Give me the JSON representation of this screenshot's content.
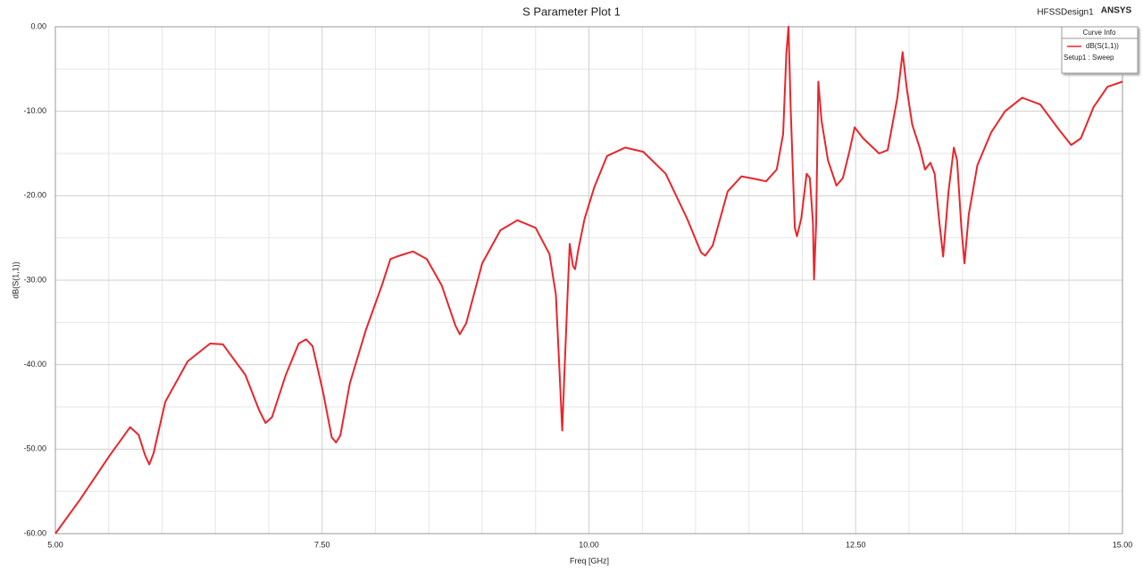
{
  "chart_data": {
    "type": "line",
    "title": "S Parameter Plot 1",
    "design": "HFSSDesign1",
    "brand": "ANSYS",
    "legend_title": "Curve Info",
    "legend_note": "Setup1 : Sweep",
    "xlabel": "Freq [GHz]",
    "ylabel": "dB(S(1,1))",
    "grid": true,
    "xlim": [
      5,
      15
    ],
    "ylim": [
      -60,
      0
    ],
    "xticks": [
      {
        "value": 5,
        "label": "5.00"
      },
      {
        "value": 7.5,
        "label": "7.50"
      },
      {
        "value": 10,
        "label": "10.00"
      },
      {
        "value": 12.5,
        "label": "12.50"
      },
      {
        "value": 15,
        "label": "15.00"
      }
    ],
    "yticks": [
      {
        "value": 0,
        "label": "0.00"
      },
      {
        "value": -10,
        "label": "-10.00"
      },
      {
        "value": -20,
        "label": "-20.00"
      },
      {
        "value": -30,
        "label": "-30.00"
      },
      {
        "value": -40,
        "label": "-40.00"
      },
      {
        "value": -50,
        "label": "-50.00"
      },
      {
        "value": -60,
        "label": "-60.00"
      }
    ],
    "xticks_minor": [
      5.5,
      6,
      6.5,
      7,
      8,
      8.5,
      9,
      9.5,
      10.5,
      11,
      11.5,
      12,
      13,
      13.5,
      14,
      14.5
    ],
    "yticks_minor": [
      -5,
      -15,
      -25,
      -35,
      -45,
      -55
    ],
    "x": [
      5.0,
      5.23,
      5.5,
      5.7,
      5.78,
      5.84,
      5.88,
      5.92,
      6.03,
      6.24,
      6.45,
      6.57,
      6.78,
      6.91,
      6.97,
      7.03,
      7.16,
      7.28,
      7.35,
      7.41,
      7.51,
      7.59,
      7.63,
      7.67,
      7.76,
      7.91,
      8.06,
      8.14,
      8.2,
      8.35,
      8.48,
      8.62,
      8.75,
      8.79,
      8.85,
      9.0,
      9.17,
      9.33,
      9.5,
      9.63,
      9.69,
      9.73,
      9.75,
      9.77,
      9.8,
      9.82,
      9.85,
      9.87,
      9.9,
      9.96,
      10.05,
      10.17,
      10.34,
      10.51,
      10.72,
      10.92,
      11.05,
      11.09,
      11.16,
      11.3,
      11.43,
      11.55,
      11.66,
      11.76,
      11.82,
      11.85,
      11.87,
      11.89,
      11.93,
      11.95,
      11.99,
      12.04,
      12.07,
      12.1,
      12.11,
      12.13,
      12.15,
      12.18,
      12.24,
      12.32,
      12.38,
      12.44,
      12.49,
      12.57,
      12.72,
      12.8,
      12.89,
      12.94,
      12.98,
      13.03,
      13.1,
      13.15,
      13.2,
      13.24,
      13.28,
      13.32,
      13.37,
      13.42,
      13.45,
      13.49,
      13.52,
      13.56,
      13.64,
      13.77,
      13.9,
      14.06,
      14.23,
      14.4,
      14.52,
      14.61,
      14.73,
      14.86,
      15.0
    ],
    "series": [
      {
        "name": "dB(S(1,1))",
        "color": "#e8262b",
        "values": [
          -60,
          -56,
          -50.9,
          -47.4,
          -48.3,
          -50.7,
          -51.8,
          -50.5,
          -44.4,
          -39.6,
          -37.5,
          -37.6,
          -41.2,
          -45.4,
          -46.9,
          -46.2,
          -41.2,
          -37.5,
          -37,
          -37.8,
          -43.3,
          -48.6,
          -49.2,
          -48.4,
          -42.2,
          -35.9,
          -30.6,
          -27.5,
          -27.2,
          -26.6,
          -27.5,
          -30.6,
          -35.4,
          -36.4,
          -35.1,
          -28,
          -24.1,
          -22.9,
          -23.8,
          -26.9,
          -31.7,
          -42.2,
          -47.8,
          -41.2,
          -31.7,
          -25.7,
          -28.3,
          -28.7,
          -26.4,
          -22.7,
          -19,
          -15.3,
          -14.3,
          -14.8,
          -17.4,
          -22.7,
          -26.7,
          -27.1,
          -25.9,
          -19.5,
          -17.7,
          -18,
          -18.3,
          -16.9,
          -12.7,
          -3.2,
          0,
          -9.5,
          -23.8,
          -24.8,
          -22.7,
          -17.4,
          -17.9,
          -23.2,
          -29.9,
          -23.2,
          -6.5,
          -11.1,
          -15.8,
          -18.8,
          -17.9,
          -14.8,
          -11.9,
          -13.2,
          -15,
          -14.6,
          -8.4,
          -3,
          -7.4,
          -11.6,
          -14.3,
          -16.9,
          -16.1,
          -17.4,
          -22.7,
          -27.2,
          -19.5,
          -14.3,
          -15.8,
          -23.8,
          -28,
          -22.2,
          -16.4,
          -12.5,
          -10,
          -8.4,
          -9.2,
          -12.1,
          -14,
          -13.2,
          -9.5,
          -7.1,
          -6.5
        ]
      }
    ]
  }
}
